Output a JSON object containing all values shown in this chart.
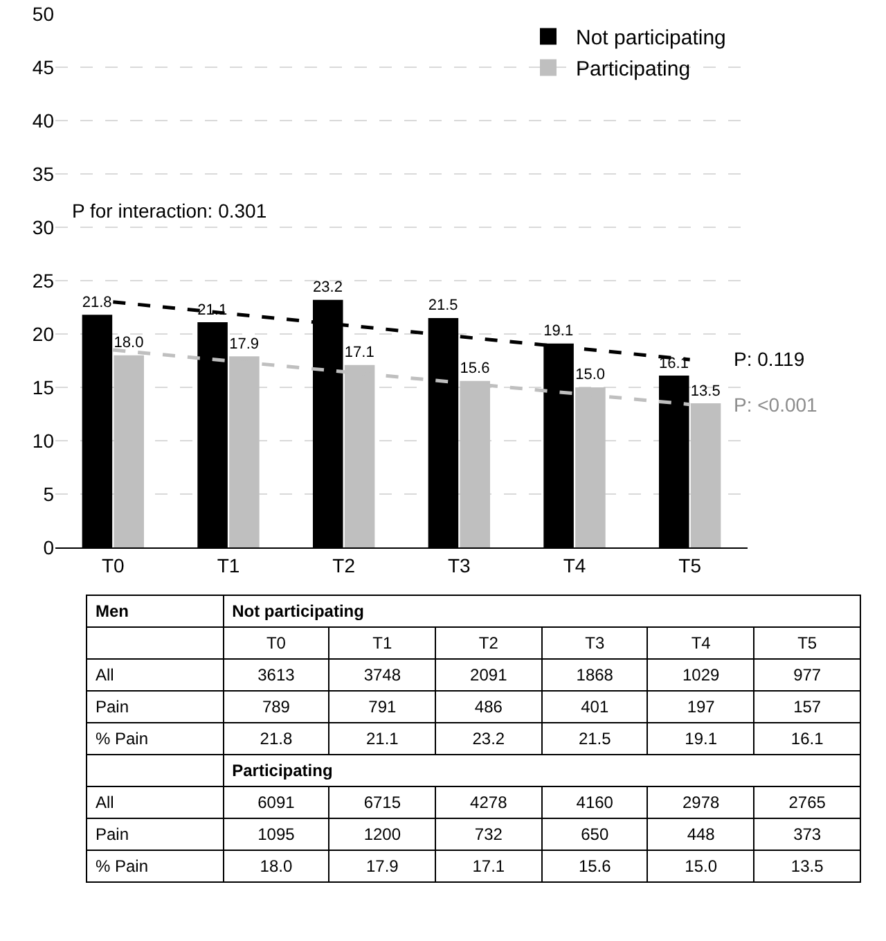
{
  "chart_data": [
    {
      "type": "bar",
      "categories": [
        "T0",
        "T1",
        "T2",
        "T3",
        "T4",
        "T5"
      ],
      "series": [
        {
          "name": "Not participating",
          "color": "#000000",
          "values": [
            21.8,
            21.1,
            23.2,
            21.5,
            19.1,
            16.1
          ],
          "value_labels": [
            "21.8",
            "21.1",
            "23.2",
            "21.5",
            "19.1",
            "16.1"
          ]
        },
        {
          "name": "Participating",
          "color": "#bfbfbf",
          "values": [
            18.0,
            17.9,
            17.1,
            15.6,
            15.0,
            13.5
          ],
          "value_labels": [
            "18.0",
            "17.9",
            "17.1",
            "15.6",
            "15.0",
            "13.5"
          ]
        },
        {
          "type": "line",
          "color": "#000000",
          "line_style": "dashed",
          "x": [
            "T0",
            "T5"
          ],
          "values": [
            23.0,
            17.6
          ]
        },
        {
          "type": "line",
          "color": "#bfbfbf",
          "line_style": "dashed",
          "x": [
            "T0",
            "T5"
          ],
          "values": [
            18.5,
            13.4
          ]
        }
      ],
      "annotations": [
        "P for interaction: 0.301",
        {
          "text": "P: 0.119",
          "x": "T5",
          "y": 17.6
        },
        {
          "text": "P: <0.001",
          "x": "T5",
          "y": 13.4
        }
      ],
      "ylim": [
        0,
        50
      ],
      "yticks": [
        0,
        5,
        10,
        15,
        20,
        25,
        30,
        35,
        40,
        45,
        50
      ],
      "grid": "y",
      "legend": "top right"
    },
    {
      "type": "other",
      "categories": [
        "T0",
        "T1",
        "T2",
        "T3",
        "T4",
        "T5"
      ],
      "annotations": [
        "Men",
        "Not participating",
        "Participating"
      ],
      "series": [
        {
          "name": "All",
          "values": [
            3613,
            3748,
            2091,
            1868,
            1029,
            977
          ],
          "value_labels": [
            "3613",
            "3748",
            "2091",
            "1868",
            "1029",
            "977"
          ]
        },
        {
          "name": "Pain",
          "values": [
            789,
            791,
            486,
            401,
            197,
            157
          ],
          "value_labels": [
            "789",
            "791",
            "486",
            "401",
            "197",
            "157"
          ]
        },
        {
          "name": "% Pain",
          "values": [
            21.8,
            21.1,
            23.2,
            21.5,
            19.1,
            16.1
          ],
          "value_labels": [
            "21.8",
            "21.1",
            "23.2",
            "21.5",
            "19.1",
            "16.1"
          ]
        },
        {
          "name": "All",
          "values": [
            6091,
            6715,
            4278,
            4160,
            2978,
            2765
          ],
          "value_labels": [
            "6091",
            "6715",
            "4278",
            "4160",
            "2978",
            "2765"
          ]
        },
        {
          "name": "Pain",
          "values": [
            1095,
            1200,
            732,
            650,
            448,
            373
          ],
          "value_labels": [
            "1095",
            "1200",
            "732",
            "650",
            "448",
            "373"
          ]
        },
        {
          "name": "% Pain",
          "values": [
            18.0,
            17.9,
            17.1,
            15.6,
            15.0,
            13.5
          ],
          "value_labels": [
            "18.0",
            "17.9",
            "17.1",
            "15.6",
            "15.0",
            "13.5"
          ]
        }
      ]
    }
  ]
}
